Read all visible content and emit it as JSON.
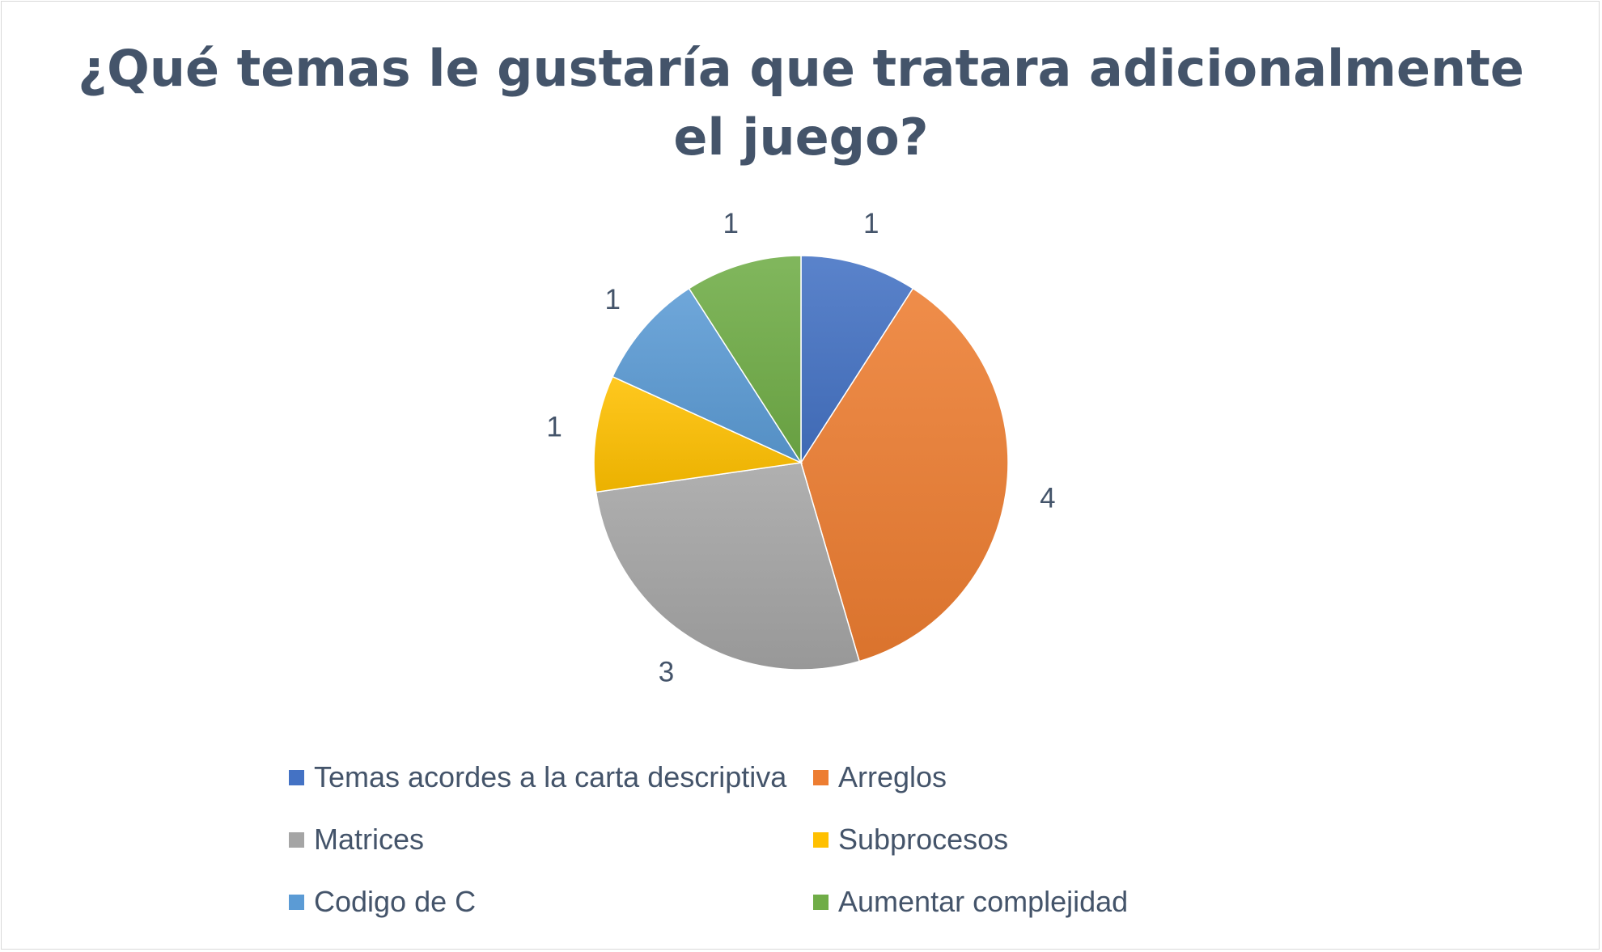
{
  "chart_data": {
    "type": "pie",
    "title": "¿Qué temas le gustaría que tratara adicionalmente\nel juego?",
    "categories": [
      "Temas acordes a la carta descriptiva",
      "Arreglos",
      "Matrices",
      "Subprocesos",
      "Codigo de C",
      "Aumentar complejidad"
    ],
    "values": [
      1,
      4,
      3,
      1,
      1,
      1
    ],
    "colors": [
      "#4472c4",
      "#ed7d31",
      "#a5a5a5",
      "#ffc000",
      "#5b9bd5",
      "#70ad47"
    ],
    "data_labels": [
      "1",
      "4",
      "3",
      "1",
      "1",
      "1"
    ],
    "legend_position": "bottom"
  }
}
